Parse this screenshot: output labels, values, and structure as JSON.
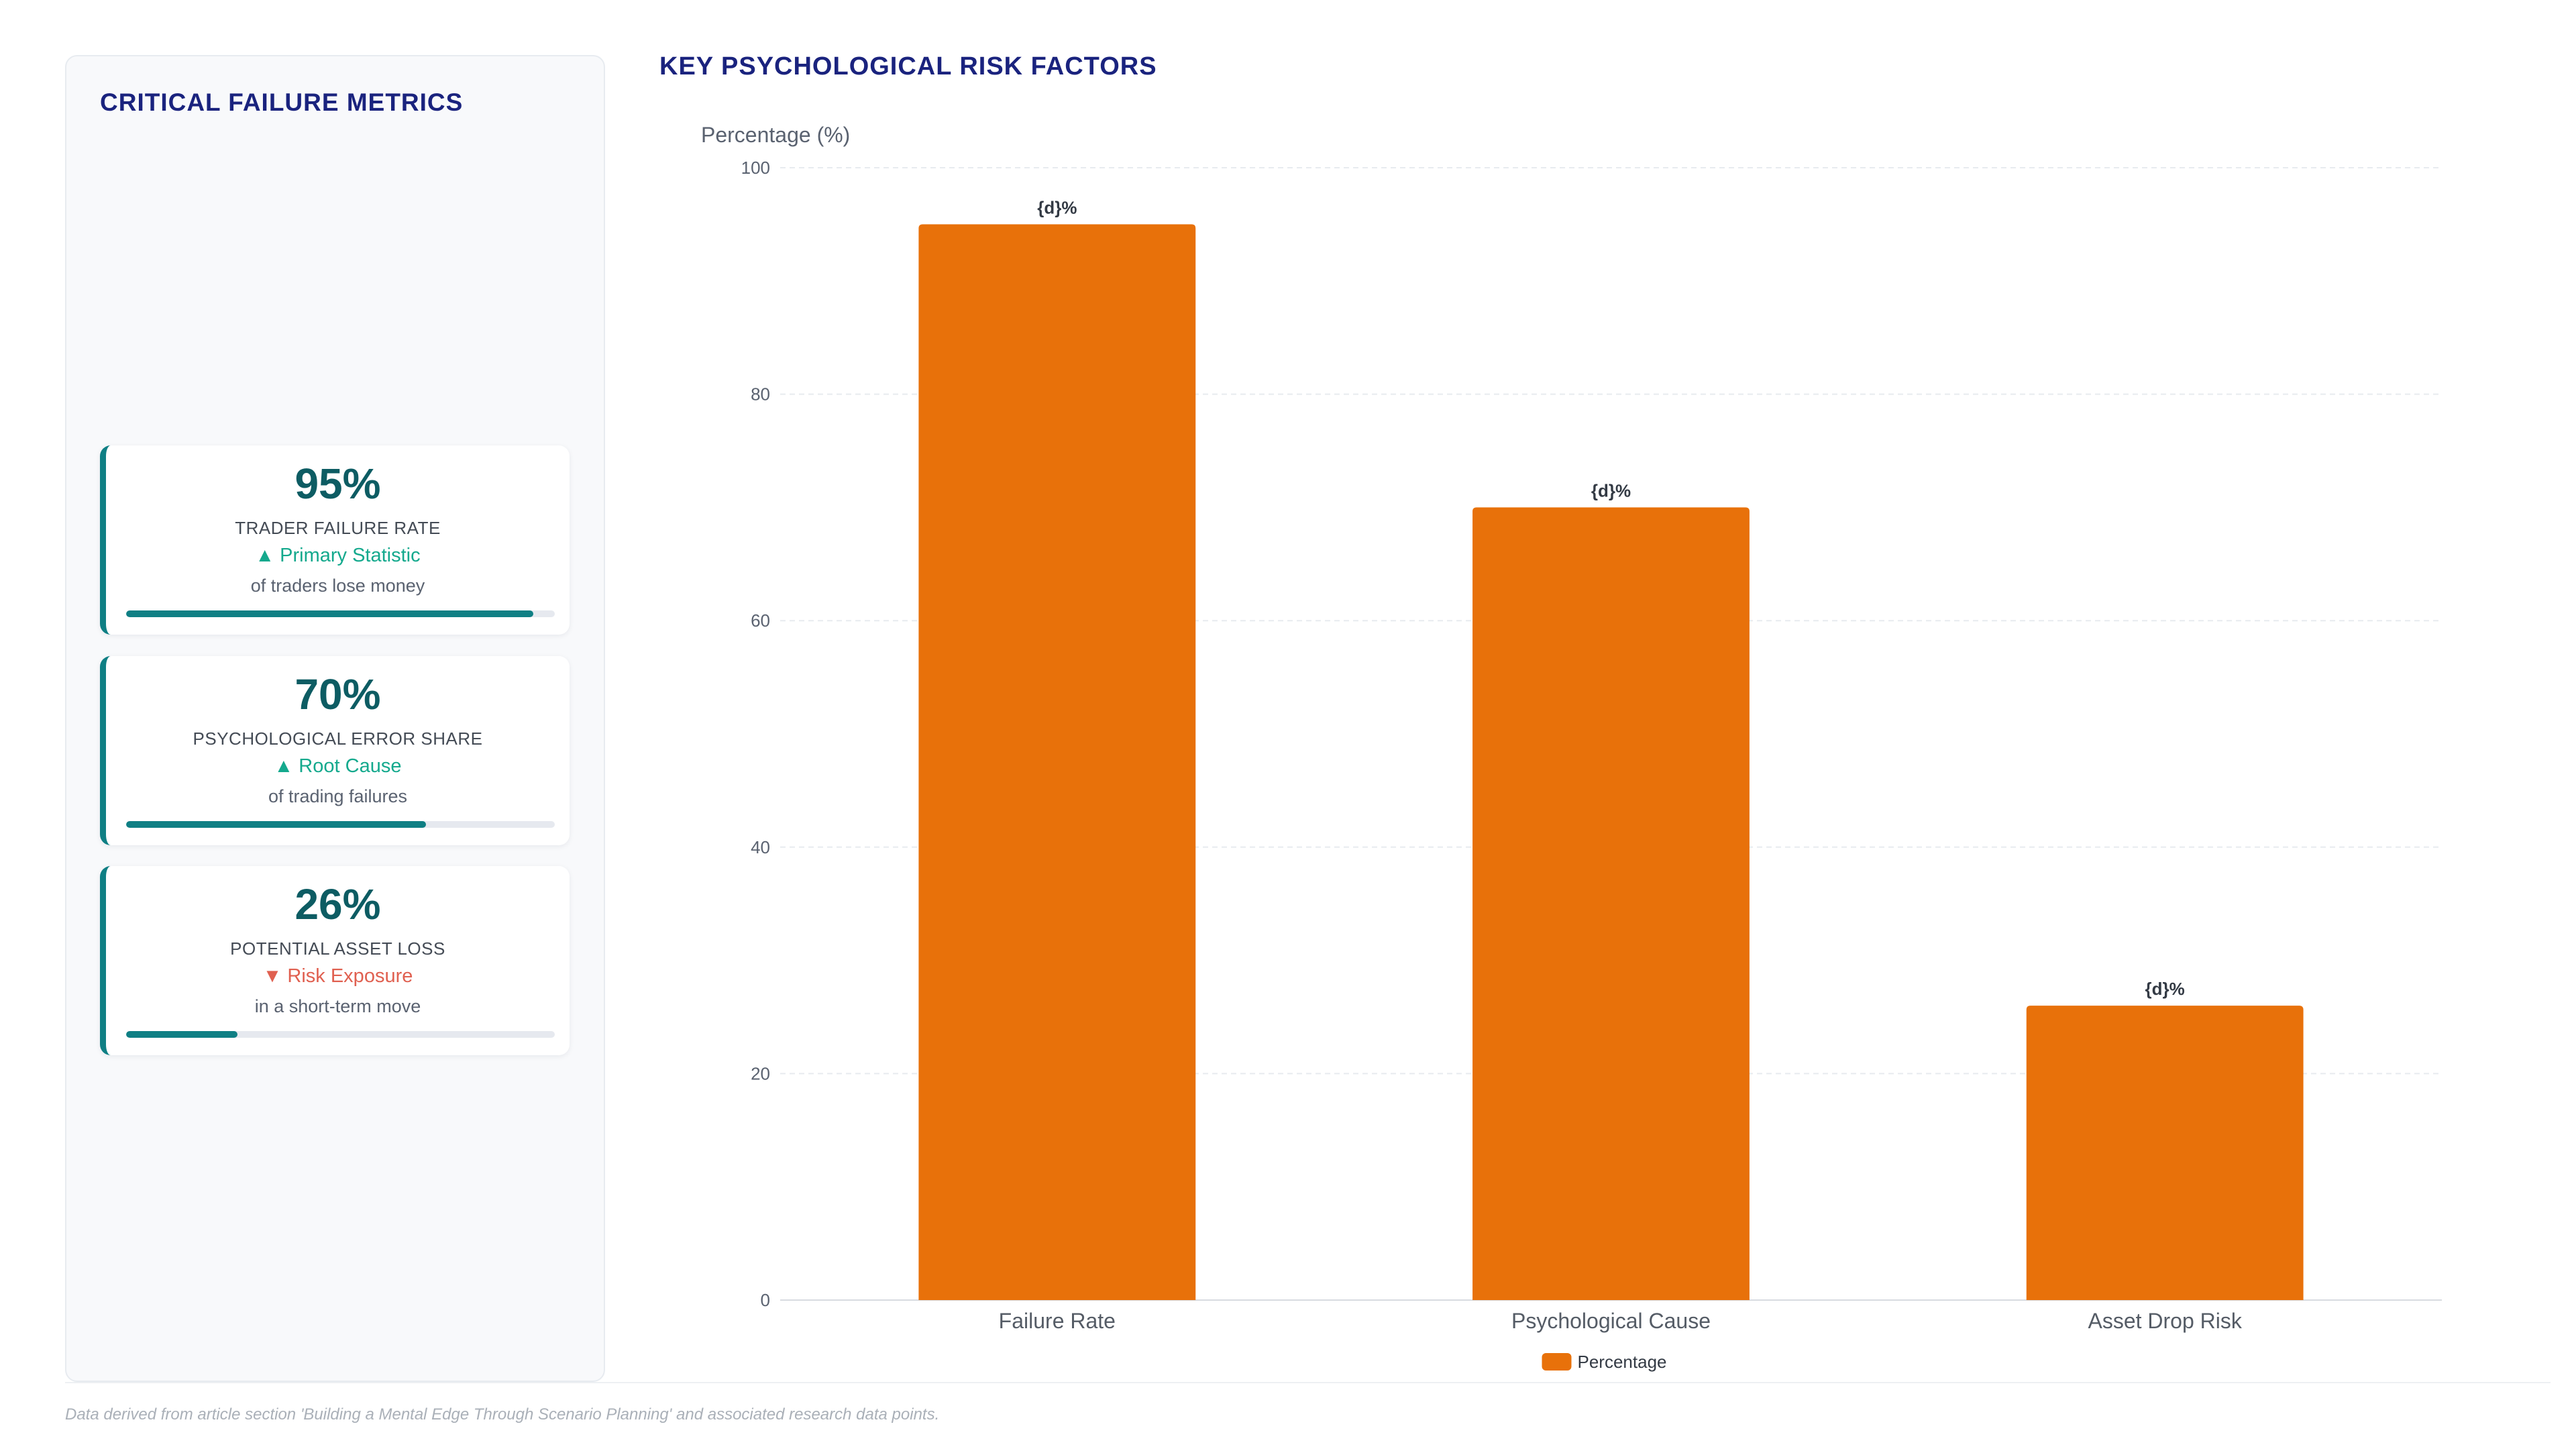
{
  "sidebar": {
    "title": "CRITICAL FAILURE METRICS",
    "metrics": [
      {
        "value": "95%",
        "label": "TRADER FAILURE RATE",
        "trend": "▲ Primary Statistic",
        "trend_direction": "up",
        "description": "of traders lose money",
        "progress": 0.95
      },
      {
        "value": "70%",
        "label": "PSYCHOLOGICAL ERROR SHARE",
        "trend": "▲ Root Cause",
        "trend_direction": "up",
        "description": "of trading failures",
        "progress": 0.7
      },
      {
        "value": "26%",
        "label": "POTENTIAL ASSET LOSS",
        "trend": "▼ Risk Exposure",
        "trend_direction": "down",
        "description": "in a short-term move",
        "progress": 0.26
      }
    ]
  },
  "chart_data": {
    "type": "bar",
    "title": "KEY PSYCHOLOGICAL RISK FACTORS",
    "ylabel": "Percentage (%)",
    "xlabel": "",
    "categories": [
      "Failure Rate",
      "Psychological Cause",
      "Asset Drop Risk"
    ],
    "series": [
      {
        "name": "Percentage",
        "values": [
          95,
          70,
          26
        ],
        "color": "#e8710a",
        "data_labels": [
          "{d}%",
          "{d}%",
          "{d}%"
        ]
      }
    ],
    "ylim": [
      0,
      100
    ],
    "yticks": [
      0,
      20,
      40,
      60,
      80,
      100
    ],
    "grid": true,
    "legend_position": "bottom-center"
  },
  "footnote": "Data derived from article section 'Building a Mental Edge Through Scenario Planning' and associated research data points."
}
